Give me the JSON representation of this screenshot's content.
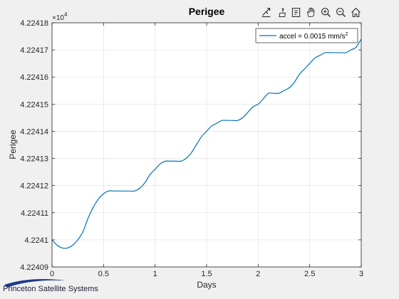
{
  "toolbar": {
    "icons": [
      "export-icon",
      "brush-icon",
      "data-tips-icon",
      "pan-hand-icon",
      "zoom-in-icon",
      "zoom-out-icon",
      "home-icon"
    ]
  },
  "logo": {
    "text": "Princeton Satellite Systems"
  },
  "colors": {
    "line": "#0072bd",
    "axes_bg": "#ffffff",
    "figure_bg": "#f0f0f0",
    "grid": "#e6e6e6"
  },
  "chart_data": {
    "type": "line",
    "title": "Perigee",
    "xlabel": "Days",
    "ylabel": "Perigee",
    "exponent_label": "×10",
    "exponent_power": "4",
    "xlim": [
      0,
      3
    ],
    "ylim": [
      4.22409,
      4.22418
    ],
    "x_ticks": [
      0,
      0.5,
      1,
      1.5,
      2,
      2.5,
      3
    ],
    "x_tick_labels": [
      "0",
      "0.5",
      "1",
      "1.5",
      "2",
      "2.5",
      "3"
    ],
    "y_ticks": [
      4.22409,
      4.2241,
      4.22411,
      4.22412,
      4.22413,
      4.22414,
      4.22415,
      4.22416,
      4.22417,
      4.22418
    ],
    "y_tick_labels": [
      "4.22409",
      "4.2241",
      "4.22411",
      "4.22412",
      "4.22413",
      "4.22414",
      "4.22415",
      "4.22416",
      "4.22417",
      "4.22418"
    ],
    "grid": true,
    "legend_position": "top-right",
    "series": [
      {
        "name": "accel = 0.0015 mm/s",
        "name_superscript": "2",
        "x": [
          0,
          0.05,
          0.1,
          0.15,
          0.2,
          0.25,
          0.3,
          0.35,
          0.4,
          0.45,
          0.5,
          0.55,
          0.6,
          0.65,
          0.7,
          0.75,
          0.8,
          0.85,
          0.9,
          0.95,
          1.0,
          1.05,
          1.1,
          1.15,
          1.2,
          1.25,
          1.3,
          1.35,
          1.4,
          1.45,
          1.5,
          1.55,
          1.6,
          1.65,
          1.7,
          1.75,
          1.8,
          1.85,
          1.9,
          1.95,
          2.0,
          2.05,
          2.1,
          2.15,
          2.2,
          2.25,
          2.3,
          2.35,
          2.4,
          2.45,
          2.5,
          2.55,
          2.6,
          2.65,
          2.7,
          2.75,
          2.8,
          2.85,
          2.9,
          2.95,
          3.0
        ],
        "y": [
          4.2241,
          4.224098,
          4.224097,
          4.224097,
          4.224098,
          4.2241,
          4.224103,
          4.224108,
          4.224112,
          4.224115,
          4.224117,
          4.224118,
          4.224118,
          4.224118,
          4.224118,
          4.224118,
          4.224118,
          4.224119,
          4.224121,
          4.224124,
          4.224126,
          4.224128,
          4.224129,
          4.224129,
          4.224129,
          4.224129,
          4.22413,
          4.224132,
          4.224135,
          4.224138,
          4.22414,
          4.224142,
          4.224143,
          4.224144,
          4.224144,
          4.224144,
          4.224144,
          4.224145,
          4.224147,
          4.224149,
          4.22415,
          4.224152,
          4.224154,
          4.224154,
          4.224154,
          4.224155,
          4.224156,
          4.224158,
          4.224161,
          4.224163,
          4.224165,
          4.224167,
          4.224168,
          4.224169,
          4.224169,
          4.224169,
          4.224169,
          4.224169,
          4.22417,
          4.224171,
          4.224174
        ]
      }
    ]
  }
}
